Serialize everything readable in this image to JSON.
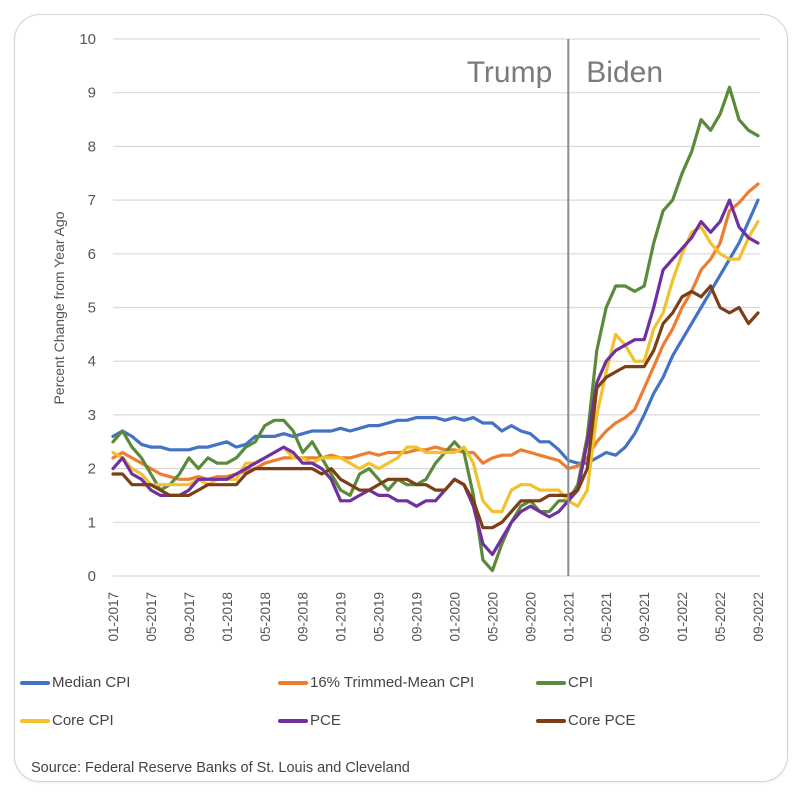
{
  "chart_data": {
    "type": "line",
    "title": "",
    "ylabel": "Percent Change from Year Ago",
    "xlabel": "",
    "ylim": [
      0,
      10
    ],
    "yticks": [
      "0",
      "1",
      "2",
      "3",
      "4",
      "5",
      "6",
      "7",
      "8",
      "9",
      "10"
    ],
    "grid": true,
    "legend_position": "bottom",
    "x_start": "01-2017",
    "x_end": "09-2022",
    "xtick_labels": [
      "01-2017",
      "05-2017",
      "09-2017",
      "01-2018",
      "05-2018",
      "09-2018",
      "01-2019",
      "05-2019",
      "09-2019",
      "01-2020",
      "05-2020",
      "09-2020",
      "01-2021",
      "05-2021",
      "09-2021",
      "01-2022",
      "05-2022",
      "09-2022"
    ],
    "xtick_step_months": 4,
    "annotations": {
      "divider_at": "01-2021",
      "left_label": "Trump",
      "right_label": "Biden"
    },
    "series": [
      {
        "name": "Median CPI",
        "color": "#4472c4",
        "values": [
          2.6,
          2.7,
          2.6,
          2.45,
          2.4,
          2.4,
          2.35,
          2.35,
          2.35,
          2.4,
          2.4,
          2.45,
          2.5,
          2.4,
          2.45,
          2.6,
          2.6,
          2.6,
          2.65,
          2.6,
          2.65,
          2.7,
          2.7,
          2.7,
          2.75,
          2.7,
          2.75,
          2.8,
          2.8,
          2.85,
          2.9,
          2.9,
          2.95,
          2.95,
          2.95,
          2.9,
          2.95,
          2.9,
          2.95,
          2.85,
          2.85,
          2.7,
          2.8,
          2.7,
          2.65,
          2.5,
          2.5,
          2.35,
          2.15,
          2.1,
          2.1,
          2.2,
          2.3,
          2.25,
          2.4,
          2.65,
          3.0,
          3.4,
          3.7,
          4.1,
          4.4,
          4.7,
          5.0,
          5.3,
          5.6,
          5.9,
          6.2,
          6.6,
          7.0
        ]
      },
      {
        "name": "16% Trimmed-Mean CPI",
        "color": "#ed7d31",
        "values": [
          2.2,
          2.3,
          2.2,
          2.1,
          2.0,
          1.9,
          1.85,
          1.8,
          1.8,
          1.85,
          1.8,
          1.85,
          1.85,
          1.9,
          1.95,
          2.0,
          2.1,
          2.15,
          2.2,
          2.2,
          2.2,
          2.2,
          2.2,
          2.25,
          2.2,
          2.2,
          2.25,
          2.3,
          2.25,
          2.3,
          2.3,
          2.3,
          2.35,
          2.35,
          2.4,
          2.35,
          2.35,
          2.3,
          2.3,
          2.1,
          2.2,
          2.25,
          2.25,
          2.35,
          2.3,
          2.25,
          2.2,
          2.15,
          2.0,
          2.05,
          2.2,
          2.5,
          2.7,
          2.85,
          2.95,
          3.1,
          3.5,
          3.9,
          4.3,
          4.6,
          5.0,
          5.3,
          5.7,
          5.9,
          6.2,
          6.8,
          6.95,
          7.15,
          7.3
        ]
      },
      {
        "name": "CPI",
        "color": "#5a8a3a",
        "values": [
          2.5,
          2.7,
          2.4,
          2.2,
          1.9,
          1.6,
          1.7,
          1.9,
          2.2,
          2.0,
          2.2,
          2.1,
          2.1,
          2.2,
          2.4,
          2.5,
          2.8,
          2.9,
          2.9,
          2.7,
          2.3,
          2.5,
          2.2,
          1.9,
          1.6,
          1.5,
          1.9,
          2.0,
          1.8,
          1.6,
          1.8,
          1.7,
          1.7,
          1.8,
          2.1,
          2.3,
          2.5,
          2.3,
          1.5,
          0.3,
          0.1,
          0.6,
          1.0,
          1.3,
          1.4,
          1.2,
          1.2,
          1.4,
          1.4,
          1.7,
          2.6,
          4.2,
          5.0,
          5.4,
          5.4,
          5.3,
          5.4,
          6.2,
          6.8,
          7.0,
          7.5,
          7.9,
          8.5,
          8.3,
          8.6,
          9.1,
          8.5,
          8.3,
          8.2
        ]
      },
      {
        "name": "Core CPI",
        "color": "#f2c12e",
        "values": [
          2.3,
          2.2,
          2.0,
          1.9,
          1.7,
          1.7,
          1.7,
          1.7,
          1.7,
          1.8,
          1.7,
          1.8,
          1.8,
          1.8,
          2.1,
          2.1,
          2.2,
          2.3,
          2.4,
          2.2,
          2.2,
          2.1,
          2.2,
          2.2,
          2.2,
          2.1,
          2.0,
          2.1,
          2.0,
          2.1,
          2.2,
          2.4,
          2.4,
          2.3,
          2.3,
          2.3,
          2.3,
          2.4,
          2.1,
          1.4,
          1.2,
          1.2,
          1.6,
          1.7,
          1.7,
          1.6,
          1.6,
          1.6,
          1.4,
          1.3,
          1.6,
          3.0,
          3.8,
          4.5,
          4.3,
          4.0,
          4.0,
          4.6,
          4.9,
          5.5,
          6.0,
          6.4,
          6.5,
          6.2,
          6.0,
          5.9,
          5.9,
          6.3,
          6.6
        ]
      },
      {
        "name": "PCE",
        "color": "#7030a0",
        "values": [
          2.0,
          2.2,
          1.9,
          1.8,
          1.6,
          1.5,
          1.5,
          1.5,
          1.6,
          1.8,
          1.8,
          1.8,
          1.8,
          1.9,
          2.0,
          2.1,
          2.2,
          2.3,
          2.4,
          2.3,
          2.1,
          2.1,
          2.0,
          1.8,
          1.4,
          1.4,
          1.5,
          1.6,
          1.5,
          1.5,
          1.4,
          1.4,
          1.3,
          1.4,
          1.4,
          1.6,
          1.8,
          1.7,
          1.3,
          0.6,
          0.4,
          0.7,
          1.0,
          1.2,
          1.3,
          1.2,
          1.1,
          1.2,
          1.4,
          1.6,
          2.5,
          3.6,
          4.0,
          4.2,
          4.3,
          4.4,
          4.4,
          5.0,
          5.7,
          5.9,
          6.1,
          6.3,
          6.6,
          6.4,
          6.6,
          7.0,
          6.5,
          6.3,
          6.2
        ]
      },
      {
        "name": "Core PCE",
        "color": "#7b3f16",
        "values": [
          1.9,
          1.9,
          1.7,
          1.7,
          1.7,
          1.6,
          1.5,
          1.5,
          1.5,
          1.6,
          1.7,
          1.7,
          1.7,
          1.7,
          1.9,
          2.0,
          2.0,
          2.0,
          2.0,
          2.0,
          2.0,
          2.0,
          1.9,
          2.0,
          1.8,
          1.7,
          1.6,
          1.6,
          1.7,
          1.8,
          1.8,
          1.8,
          1.7,
          1.7,
          1.6,
          1.6,
          1.8,
          1.7,
          1.4,
          0.9,
          0.9,
          1.0,
          1.2,
          1.4,
          1.4,
          1.4,
          1.5,
          1.5,
          1.5,
          1.6,
          2.0,
          3.5,
          3.7,
          3.8,
          3.9,
          3.9,
          3.9,
          4.2,
          4.7,
          4.9,
          5.2,
          5.3,
          5.2,
          5.4,
          5.0,
          4.9,
          5.0,
          4.7,
          4.9
        ]
      }
    ]
  },
  "legend": {
    "items": [
      {
        "label": "Median CPI",
        "color": "#4472c4"
      },
      {
        "label": "16% Trimmed-Mean CPI",
        "color": "#ed7d31"
      },
      {
        "label": "CPI",
        "color": "#5a8a3a"
      },
      {
        "label": "Core CPI",
        "color": "#f2c12e"
      },
      {
        "label": "PCE",
        "color": "#7030a0"
      },
      {
        "label": "Core PCE",
        "color": "#7b3f16"
      }
    ]
  },
  "source": "Source: Federal Reserve Banks of St. Louis and Cleveland"
}
